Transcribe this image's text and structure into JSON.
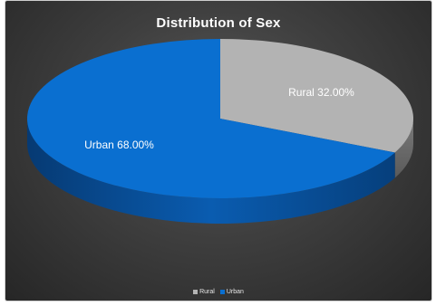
{
  "chart_data": {
    "type": "pie",
    "title": "Distribution of Sex",
    "categories": [
      "Rural",
      "Urban"
    ],
    "values": [
      32.0,
      68.0
    ],
    "value_labels": [
      "Rural 32.00%",
      "Urban  68.00%"
    ],
    "colors": [
      "#b3b3b3",
      "#0a6fd0"
    ],
    "legend": {
      "placement": "bottom",
      "entries": [
        "Rural",
        "Urban"
      ]
    }
  }
}
